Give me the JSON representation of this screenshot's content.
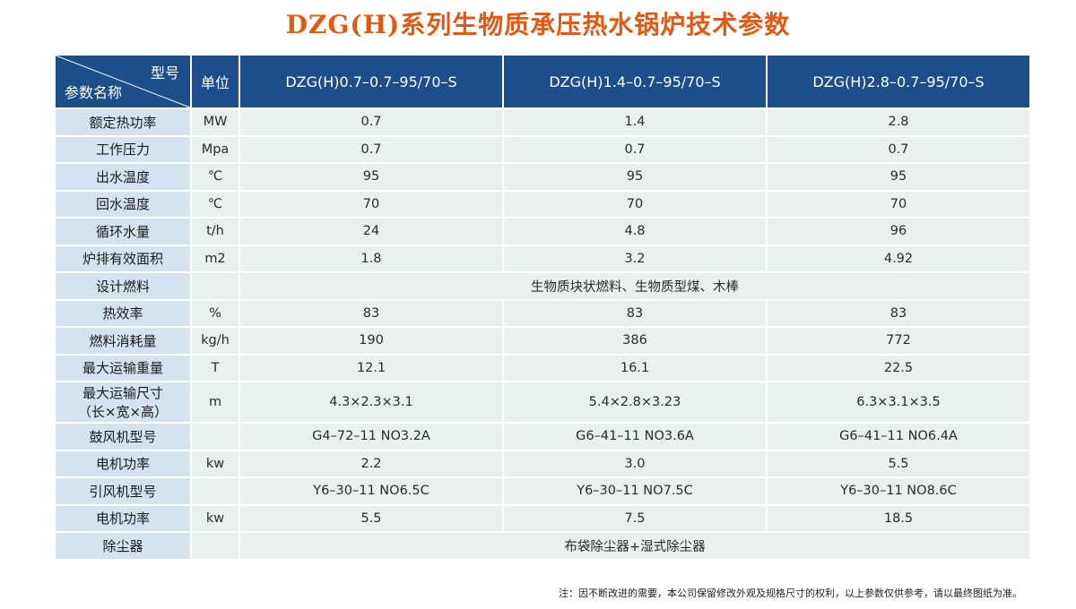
{
  "title": "DZG(H)系列生物质承压热水锅炉技术参数",
  "header": {
    "corner_top": "型号",
    "corner_bottom": "参数名称",
    "unit": "单位",
    "models": [
      "DZG(H)0.7–0.7–95/70–S",
      "DZG(H)1.4–0.7–95/70–S",
      "DZG(H)2.8–0.7–95/70–S"
    ]
  },
  "rows": [
    {
      "name": "额定热功率",
      "unit": "MW",
      "values": [
        "0.7",
        "1.4",
        "2.8"
      ]
    },
    {
      "name": "工作压力",
      "unit": "Mpa",
      "values": [
        "0.7",
        "0.7",
        "0.7"
      ]
    },
    {
      "name": "出水温度",
      "unit": "℃",
      "values": [
        "95",
        "95",
        "95"
      ]
    },
    {
      "name": "回水温度",
      "unit": "℃",
      "values": [
        "70",
        "70",
        "70"
      ]
    },
    {
      "name": "循环水量",
      "unit": "t/h",
      "values": [
        "24",
        "4.8",
        "96"
      ]
    },
    {
      "name": "炉排有效面积",
      "unit": "m2",
      "values": [
        "1.8",
        "3.2",
        "4.92"
      ]
    },
    {
      "name": "设计燃料",
      "unit": "",
      "merged": "生物质块状燃料、生物质型煤、木棒"
    },
    {
      "name": "热效率",
      "unit": "%",
      "values": [
        "83",
        "83",
        "83"
      ]
    },
    {
      "name": "燃料消耗量",
      "unit": "kg/h",
      "values": [
        "190",
        "386",
        "772"
      ]
    },
    {
      "name": "最大运输重量",
      "unit": "T",
      "values": [
        "12.1",
        "16.1",
        "22.5"
      ]
    },
    {
      "name": "最大运输尺寸",
      "name2": "（长×宽×高）",
      "unit": "m",
      "values": [
        "4.3×2.3×3.1",
        "5.4×2.8×3.23",
        "6.3×3.1×3.5"
      ]
    },
    {
      "name": "鼓风机型号",
      "unit": "",
      "values": [
        "G4–72–11 NO3.2A",
        "G6–41–11 NO3.6A",
        "G6–41–11 NO6.4A"
      ]
    },
    {
      "name": "电机功率",
      "unit": "kw",
      "values": [
        "2.2",
        "3.0",
        "5.5"
      ]
    },
    {
      "name": "引风机型号",
      "unit": "",
      "values": [
        "Y6–30–11 NO6.5C",
        "Y6–30–11 NO7.5C",
        "Y6–30–11 NO8.6C"
      ]
    },
    {
      "name": "电机功率",
      "unit": "kw",
      "values": [
        "5.5",
        "7.5",
        "18.5"
      ]
    },
    {
      "name": "除尘器",
      "unit": "",
      "merged": "布袋除尘器+湿式除尘器"
    }
  ],
  "note": "注：因不断改进的需要，本公司保留修改外观及规格尺寸的权利，以上参数仅供参考，请以最终图纸为准。"
}
